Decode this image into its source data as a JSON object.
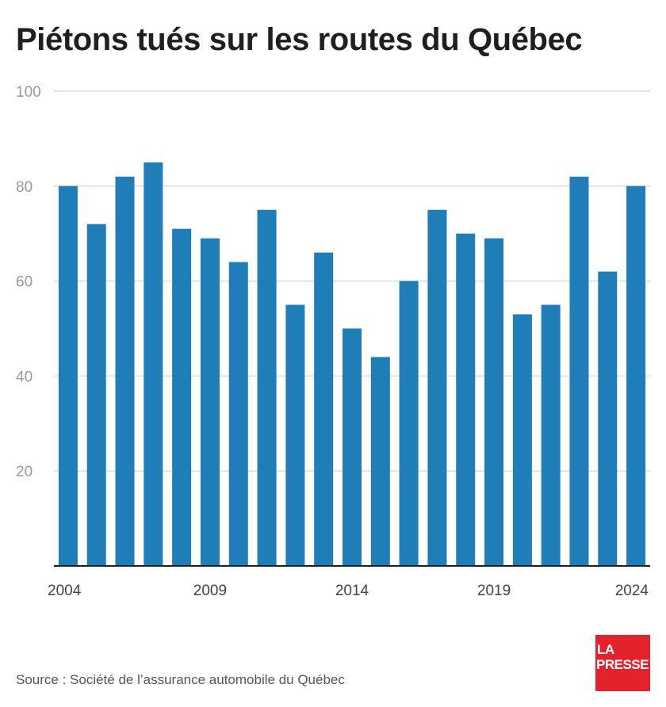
{
  "title": "Piétons tués sur les routes du Québec",
  "source": "Source : Société de l’assurance automobile du Québec",
  "logo": {
    "line1": "LA",
    "line2": "PRESSE",
    "background": "#e4222b"
  },
  "colors": {
    "bar": "#1f7db8",
    "grid": "#dcdcdc",
    "axis": "#1f1f1f",
    "tick_label": "#9a9a9a",
    "x_tick_label": "#444444",
    "text": "#1f1f1f"
  },
  "chart_data": {
    "type": "bar",
    "categories": [
      "2004",
      "2005",
      "2006",
      "2007",
      "2008",
      "2009",
      "2010",
      "2011",
      "2012",
      "2013",
      "2014",
      "2015",
      "2016",
      "2017",
      "2018",
      "2019",
      "2020",
      "2021",
      "2022",
      "2023",
      "2024"
    ],
    "values": [
      80,
      72,
      82,
      85,
      71,
      69,
      64,
      75,
      55,
      66,
      50,
      44,
      60,
      75,
      70,
      69,
      53,
      55,
      82,
      62,
      80
    ],
    "title": "Piétons tués sur les routes du Québec",
    "xlabel": "",
    "ylabel": "",
    "ylim": [
      0,
      100
    ],
    "y_ticks": [
      20,
      40,
      60,
      80,
      100
    ],
    "x_ticks": [
      "2004",
      "2009",
      "2014",
      "2019",
      "2024"
    ],
    "grid": true,
    "legend": "none"
  }
}
